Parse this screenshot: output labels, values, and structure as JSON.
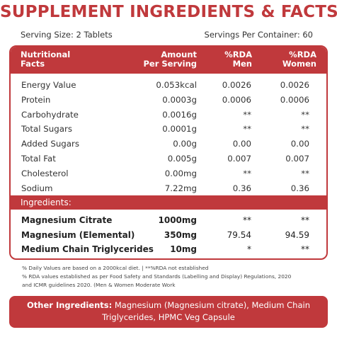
{
  "title": "SUPPLEMENT INGREDIENTS & FACTS",
  "serving_size": "Serving Size: 2 Tablets",
  "servings_per_container": "Servings Per Container: 60",
  "table": {
    "headers": {
      "nutritional_line1": "Nutritional",
      "nutritional_line2": "Facts",
      "amount_line1": "Amount",
      "amount_line2": "Per Serving",
      "rda_men_line1": "%RDA",
      "rda_men_line2": "Men",
      "rda_women_line1": "%RDA",
      "rda_women_line2": "Women"
    },
    "rows": [
      {
        "name": "Energy Value",
        "amount": "0.053kcal",
        "men": "0.0026",
        "women": "0.0026"
      },
      {
        "name": "Protein",
        "amount": "0.0003g",
        "men": "0.0006",
        "women": "0.0006"
      },
      {
        "name": "Carbohydrate",
        "amount": "0.0016g",
        "men": "**",
        "women": "**"
      },
      {
        "name": "Total Sugars",
        "amount": "0.0001g",
        "men": "**",
        "women": "**"
      },
      {
        "name": "Added Sugars",
        "amount": "0.00g",
        "men": "0.00",
        "women": "0.00"
      },
      {
        "name": "Total Fat",
        "amount": "0.005g",
        "men": "0.007",
        "women": "0.007"
      },
      {
        "name": "Cholesterol",
        "amount": "0.00mg",
        "men": "**",
        "women": "**"
      },
      {
        "name": "Sodium",
        "amount": "7.22mg",
        "men": "0.36",
        "women": "0.36"
      }
    ],
    "ingredients_label": "Ingredients:",
    "ingredients": [
      {
        "name": "Magnesium Citrate",
        "amount": "1000mg",
        "men": "**",
        "women": "**"
      },
      {
        "name": "Magnesium (Elemental)",
        "amount": "350mg",
        "men": "79.54",
        "women": "94.59"
      },
      {
        "name": "Medium Chain Triglycerides",
        "amount": "10mg",
        "men": "*",
        "women": "**"
      }
    ]
  },
  "notes": {
    "line1": "% Daily Values are based on a 2000kcal diet.  |   **%RDA not established",
    "line2": "% RDA values established as per Food Safety and Standards (Labelling and Display) Regulations, 2020",
    "line3": "and ICMR guidelines 2020. (Men & Women Moderate Work"
  },
  "other_ingredients": {
    "label": "Other Ingredients:",
    "text": " Magnesium (Magnesium citrate), Medium Chain Triglycerides, HPMC Veg Capsule"
  },
  "colors": {
    "accent": "#c0393c"
  }
}
